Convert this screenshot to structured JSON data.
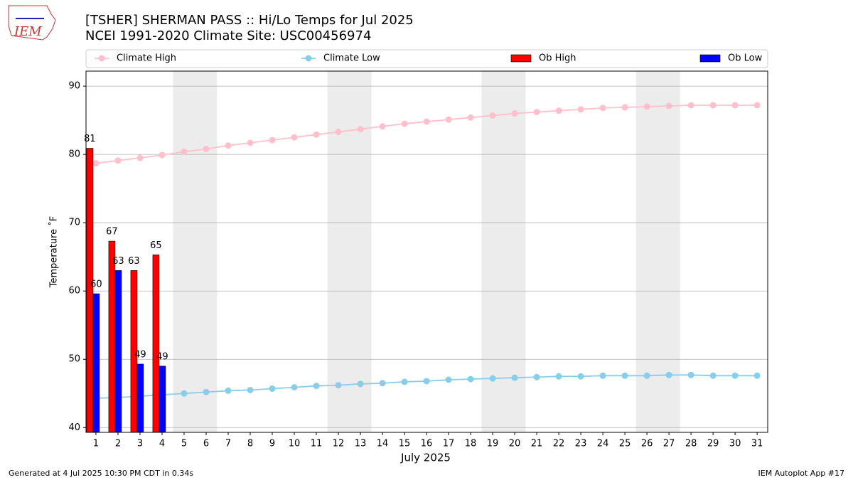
{
  "logo": "IEM",
  "footer": {
    "left": "Generated at 4 Jul 2025 10:30 PM CDT in 0.34s",
    "right": "IEM Autoplot App #17"
  },
  "chart_data": {
    "type": "bar",
    "title": "[TSHER] SHERMAN PASS  :: Hi/Lo Temps for Jul 2025",
    "subtitle": "NCEI 1991-2020 Climate Site: USC00456974",
    "xlabel": "July 2025",
    "ylabel": "Temperature ˚F",
    "x": [
      1,
      2,
      3,
      4,
      5,
      6,
      7,
      8,
      9,
      10,
      11,
      12,
      13,
      14,
      15,
      16,
      17,
      18,
      19,
      20,
      21,
      22,
      23,
      24,
      25,
      26,
      27,
      28,
      29,
      30,
      31
    ],
    "xlim": [
      0.55,
      31.48
    ],
    "xticks": [
      1,
      2,
      3,
      4,
      5,
      6,
      7,
      8,
      9,
      10,
      11,
      12,
      13,
      14,
      15,
      16,
      17,
      18,
      19,
      20,
      21,
      22,
      23,
      24,
      25,
      26,
      27,
      28,
      29,
      30,
      31
    ],
    "ylim": [
      39.3,
      92.2
    ],
    "yticks": [
      40,
      50,
      60,
      70,
      80,
      90
    ],
    "grid": true,
    "weekend_bands": [
      [
        4.5,
        6.5
      ],
      [
        11.5,
        13.5
      ],
      [
        18.5,
        20.5
      ],
      [
        25.5,
        27.5
      ]
    ],
    "series": [
      {
        "name": "Climate High",
        "type": "line",
        "color": "#ffc0cb",
        "values": [
          78.7,
          79.1,
          79.5,
          79.9,
          80.4,
          80.8,
          81.3,
          81.7,
          82.1,
          82.5,
          82.9,
          83.3,
          83.7,
          84.1,
          84.5,
          84.8,
          85.1,
          85.4,
          85.7,
          86.0,
          86.2,
          86.4,
          86.6,
          86.8,
          86.9,
          87.0,
          87.1,
          87.2,
          87.2,
          87.2,
          87.2
        ]
      },
      {
        "name": "Climate Low",
        "type": "line",
        "color": "#87ceeb",
        "values": [
          44.3,
          44.4,
          44.6,
          44.8,
          45.0,
          45.2,
          45.4,
          45.5,
          45.7,
          45.9,
          46.1,
          46.2,
          46.4,
          46.5,
          46.7,
          46.8,
          47.0,
          47.1,
          47.2,
          47.3,
          47.4,
          47.5,
          47.5,
          47.6,
          47.6,
          47.6,
          47.7,
          47.7,
          47.6,
          47.6,
          47.6
        ]
      },
      {
        "name": "Ob High",
        "type": "bar",
        "color": "#ff0000",
        "values": [
          80.9,
          67.3,
          63.0,
          65.3,
          null,
          null,
          null,
          null,
          null,
          null,
          null,
          null,
          null,
          null,
          null,
          null,
          null,
          null,
          null,
          null,
          null,
          null,
          null,
          null,
          null,
          null,
          null,
          null,
          null,
          null,
          null
        ],
        "value_labels": [
          "81",
          "67",
          "63",
          "65",
          null,
          null,
          null,
          null,
          null,
          null,
          null,
          null,
          null,
          null,
          null,
          null,
          null,
          null,
          null,
          null,
          null,
          null,
          null,
          null,
          null,
          null,
          null,
          null,
          null,
          null,
          null
        ]
      },
      {
        "name": "Ob Low",
        "type": "bar",
        "color": "#0000ff",
        "values": [
          59.6,
          63.0,
          49.3,
          49.0,
          null,
          null,
          null,
          null,
          null,
          null,
          null,
          null,
          null,
          null,
          null,
          null,
          null,
          null,
          null,
          null,
          null,
          null,
          null,
          null,
          null,
          null,
          null,
          null,
          null,
          null,
          null
        ],
        "value_labels": [
          "60",
          "63",
          "49",
          "49",
          null,
          null,
          null,
          null,
          null,
          null,
          null,
          null,
          null,
          null,
          null,
          null,
          null,
          null,
          null,
          null,
          null,
          null,
          null,
          null,
          null,
          null,
          null,
          null,
          null,
          null,
          null
        ]
      }
    ]
  }
}
